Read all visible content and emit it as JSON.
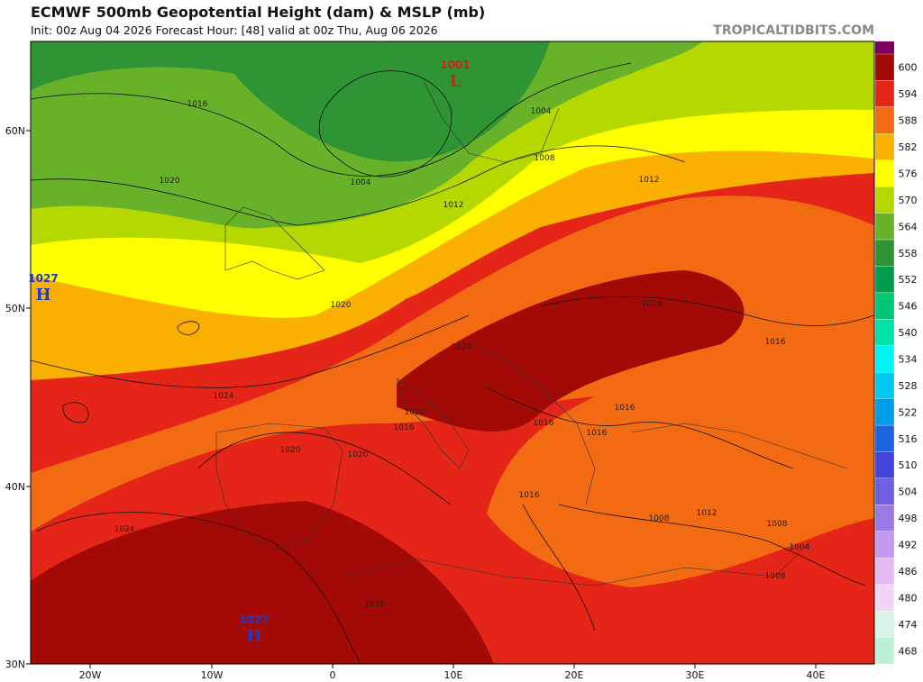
{
  "header": {
    "title": "ECMWF 500mb Geopotential Height (dam) & MSLP (mb)",
    "subtitle": "Init: 00z Aug 04 2026   Forecast Hour: [48]   valid at 00z Thu, Aug 06 2026",
    "credit": "TROPICALTIDBITS.COM"
  },
  "colorbar": {
    "labels": [
      600,
      594,
      588,
      582,
      576,
      570,
      564,
      558,
      552,
      546,
      540,
      534,
      528,
      522,
      516,
      510,
      504,
      498,
      492,
      486,
      480,
      474,
      468
    ],
    "top_color": "#7c0062",
    "colors": [
      "#a40a05",
      "#e42518",
      "#f26b12",
      "#f9b000",
      "#ffff00",
      "#b4d800",
      "#68b22a",
      "#2f9433",
      "#009e4c",
      "#00c878",
      "#00e2a8",
      "#00f4f4",
      "#00c8f0",
      "#009ee8",
      "#1e64e0",
      "#4444dc",
      "#6e5ee0",
      "#9a7ae4",
      "#c49af0",
      "#e4baf4",
      "#f4d4f4",
      "#d8f4e4",
      "#bcf0d4"
    ]
  },
  "axes": {
    "lat_labels": [
      "60N",
      "50N",
      "40N",
      "30N"
    ],
    "lon_labels": [
      "20W",
      "10W",
      "0",
      "10E",
      "20E",
      "30E",
      "40E"
    ]
  },
  "pressure_centers": [
    {
      "value": "1001",
      "letter": "L",
      "color": "#d42020"
    },
    {
      "value": "1027",
      "letter": "H",
      "color": "#1a3ad0"
    },
    {
      "value": "1027",
      "letter": "H",
      "color": "#1a3ad0"
    }
  ],
  "isobar_labels": [
    "1016",
    "1020",
    "1004",
    "1004",
    "1008",
    "1012",
    "1012",
    "1020",
    "1020",
    "1024",
    "1024",
    "1020",
    "1020",
    "1016",
    "1016",
    "1016",
    "1016",
    "1016",
    "1016",
    "1016",
    "1012",
    "1008",
    "1008",
    "1004",
    "1008",
    "1020",
    "1016"
  ]
}
